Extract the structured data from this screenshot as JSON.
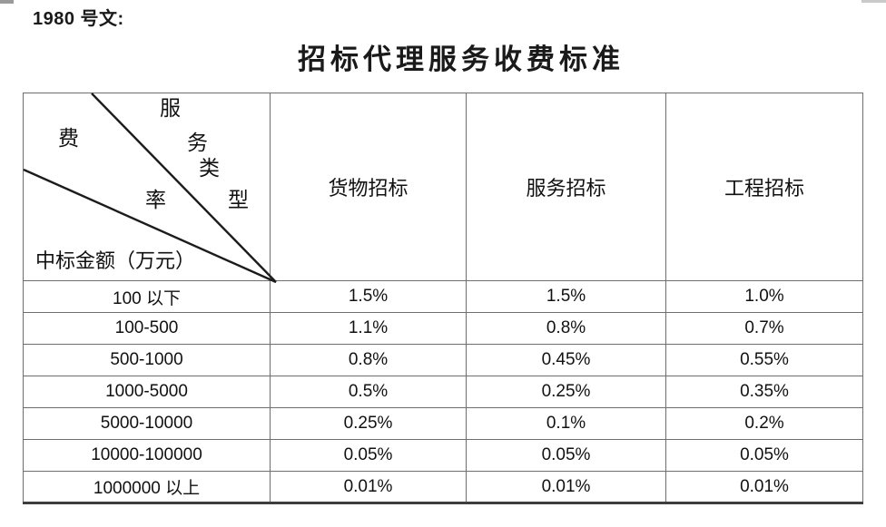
{
  "doc_number": "1980 号文:",
  "title": "招标代理服务收费标准",
  "table": {
    "corner": {
      "service_type_chars": [
        "服",
        "务",
        "类",
        "型"
      ],
      "fee_rate_chars": [
        "费",
        "率"
      ],
      "amount_label": "中标金额（万元）"
    },
    "columns": [
      "货物招标",
      "服务招标",
      "工程招标"
    ],
    "rows": [
      {
        "range": "100 以下",
        "values": [
          "1.5%",
          "1.5%",
          "1.0%"
        ]
      },
      {
        "range": "100-500",
        "values": [
          "1.1%",
          "0.8%",
          "0.7%"
        ]
      },
      {
        "range": "500-1000",
        "values": [
          "0.8%",
          "0.45%",
          "0.55%"
        ]
      },
      {
        "range": "1000-5000",
        "values": [
          "0.5%",
          "0.25%",
          "0.35%"
        ]
      },
      {
        "range": "5000-10000",
        "values": [
          "0.25%",
          "0.1%",
          "0.2%"
        ]
      },
      {
        "range": "10000-100000",
        "values": [
          "0.05%",
          "0.05%",
          "0.05%"
        ]
      },
      {
        "range": "1000000 以上",
        "values": [
          "0.01%",
          "0.01%",
          "0.01%"
        ]
      }
    ]
  },
  "colors": {
    "text": "#1a1a1a",
    "border": "#6e6e6e",
    "border_bottom": "#3d3d3d",
    "diagonal_line": "#1c1c1c"
  }
}
